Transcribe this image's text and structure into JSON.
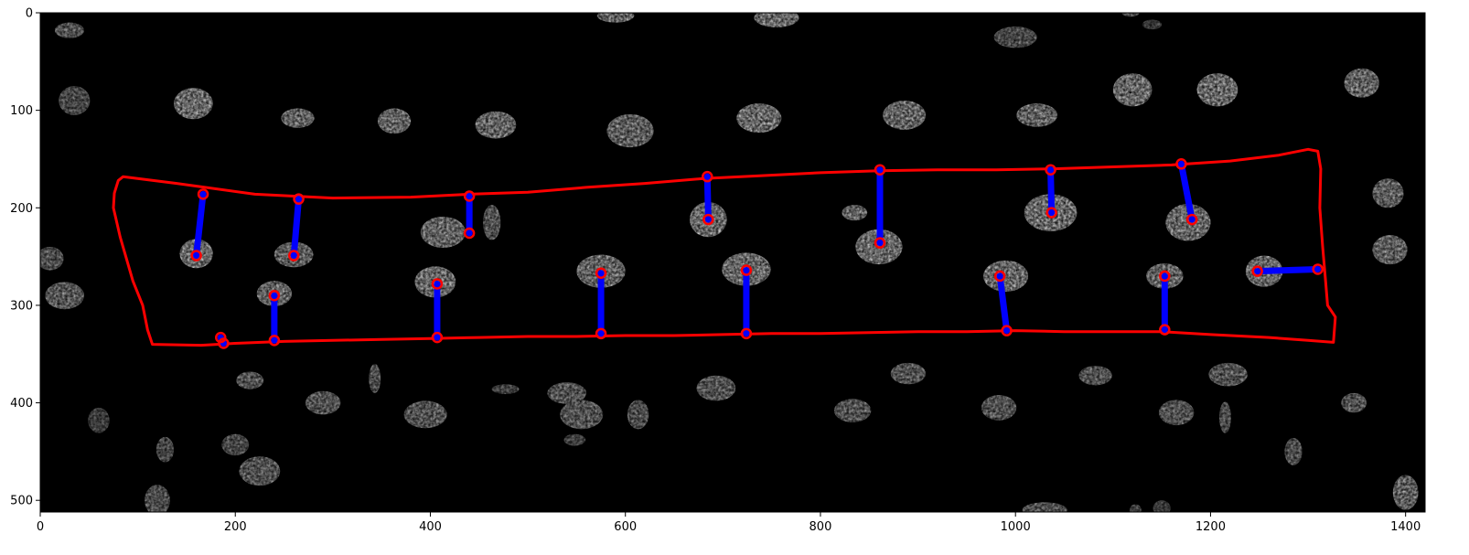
{
  "chart_data": {
    "type": "image",
    "xlim": [
      0,
      1420
    ],
    "ylim": [
      512,
      0
    ],
    "x_ticks": [
      0,
      200,
      400,
      600,
      800,
      1000,
      1200,
      1400
    ],
    "y_ticks": [
      0,
      100,
      200,
      300,
      400,
      500
    ],
    "colors": {
      "background": "#000000",
      "nucleus": "#ffffff",
      "region_outline": "#ff0000",
      "connector": "#0000ff",
      "endpoint_ring": "#ff0000"
    },
    "region_outline": [
      [
        85,
        168
      ],
      [
        140,
        175
      ],
      [
        220,
        186
      ],
      [
        300,
        190
      ],
      [
        380,
        189
      ],
      [
        440,
        186
      ],
      [
        500,
        184
      ],
      [
        560,
        179
      ],
      [
        620,
        175
      ],
      [
        680,
        170
      ],
      [
        740,
        167
      ],
      [
        800,
        164
      ],
      [
        860,
        162
      ],
      [
        920,
        161
      ],
      [
        980,
        161
      ],
      [
        1040,
        160
      ],
      [
        1100,
        158
      ],
      [
        1160,
        156
      ],
      [
        1220,
        152
      ],
      [
        1270,
        146
      ],
      [
        1300,
        140
      ],
      [
        1310,
        142
      ],
      [
        1313,
        160
      ],
      [
        1312,
        200
      ],
      [
        1315,
        240
      ],
      [
        1318,
        275
      ],
      [
        1320,
        300
      ],
      [
        1328,
        312
      ],
      [
        1326,
        338
      ],
      [
        1300,
        336
      ],
      [
        1260,
        333
      ],
      [
        1200,
        330
      ],
      [
        1150,
        327
      ],
      [
        1100,
        327
      ],
      [
        1050,
        327
      ],
      [
        1000,
        326
      ],
      [
        950,
        327
      ],
      [
        900,
        327
      ],
      [
        850,
        328
      ],
      [
        800,
        329
      ],
      [
        750,
        329
      ],
      [
        700,
        330
      ],
      [
        650,
        331
      ],
      [
        600,
        331
      ],
      [
        550,
        332
      ],
      [
        500,
        332
      ],
      [
        450,
        333
      ],
      [
        400,
        334
      ],
      [
        350,
        335
      ],
      [
        300,
        336
      ],
      [
        250,
        337
      ],
      [
        200,
        339
      ],
      [
        165,
        341
      ],
      [
        115,
        340
      ],
      [
        110,
        325
      ],
      [
        105,
        300
      ],
      [
        95,
        275
      ],
      [
        82,
        230
      ],
      [
        75,
        200
      ],
      [
        76,
        185
      ],
      [
        80,
        172
      ],
      [
        85,
        168
      ]
    ],
    "connectors": [
      [
        [
          167,
          186
        ],
        [
          160,
          249
        ]
      ],
      [
        [
          265,
          191
        ],
        [
          260,
          249
        ]
      ],
      [
        [
          440,
          188
        ],
        [
          440,
          226
        ]
      ],
      [
        [
          684,
          168
        ],
        [
          685,
          212
        ]
      ],
      [
        [
          861,
          161
        ],
        [
          861,
          236
        ]
      ],
      [
        [
          1036,
          161
        ],
        [
          1037,
          205
        ]
      ],
      [
        [
          1170,
          155
        ],
        [
          1181,
          212
        ]
      ],
      [
        [
          240,
          290
        ],
        [
          240,
          336
        ]
      ],
      [
        [
          407,
          278
        ],
        [
          407,
          333
        ]
      ],
      [
        [
          575,
          267
        ],
        [
          575,
          329
        ]
      ],
      [
        [
          724,
          264
        ],
        [
          724,
          329
        ]
      ],
      [
        [
          984,
          270
        ],
        [
          991,
          326
        ]
      ],
      [
        [
          1153,
          270
        ],
        [
          1153,
          325
        ]
      ],
      [
        [
          1248,
          265
        ],
        [
          1310,
          263
        ]
      ],
      [
        [
          185,
          333
        ],
        [
          188,
          339
        ]
      ]
    ],
    "nuclei": [
      [
        30,
        18,
        15,
        8,
        0.75
      ],
      [
        35,
        90,
        16,
        15,
        0.65
      ],
      [
        157,
        93,
        20,
        16,
        0.95
      ],
      [
        264,
        108,
        17,
        10,
        0.9
      ],
      [
        363,
        111,
        17,
        13,
        0.9
      ],
      [
        467,
        115,
        21,
        14,
        0.9
      ],
      [
        605,
        121,
        24,
        17,
        0.85
      ],
      [
        737,
        108,
        23,
        15,
        0.95
      ],
      [
        886,
        105,
        22,
        15,
        0.9
      ],
      [
        1022,
        105,
        21,
        12,
        0.9
      ],
      [
        1120,
        79,
        20,
        17,
        0.95
      ],
      [
        1207,
        79,
        21,
        17,
        0.95
      ],
      [
        1355,
        72,
        18,
        15,
        0.9
      ],
      [
        1382,
        185,
        16,
        15,
        0.85
      ],
      [
        1384,
        243,
        18,
        15,
        0.85
      ],
      [
        1000,
        25,
        22,
        11,
        0.65
      ],
      [
        755,
        5,
        23,
        10,
        0.95
      ],
      [
        590,
        3,
        19,
        7,
        0.9
      ],
      [
        1400,
        492,
        13,
        18,
        0.85
      ],
      [
        10,
        252,
        14,
        12,
        0.7
      ],
      [
        25,
        290,
        20,
        14,
        0.8
      ],
      [
        160,
        247,
        17,
        15,
        0.95
      ],
      [
        260,
        248,
        20,
        13,
        0.85
      ],
      [
        413,
        225,
        23,
        16,
        0.9
      ],
      [
        463,
        215,
        9,
        18,
        0.75
      ],
      [
        685,
        212,
        19,
        18,
        0.95
      ],
      [
        835,
        205,
        13,
        8,
        0.9
      ],
      [
        860,
        240,
        24,
        18,
        0.95
      ],
      [
        1036,
        205,
        27,
        19,
        0.95
      ],
      [
        1177,
        215,
        23,
        19,
        0.95
      ],
      [
        1255,
        265,
        19,
        16,
        0.95
      ],
      [
        240,
        288,
        18,
        13,
        0.9
      ],
      [
        405,
        276,
        21,
        16,
        0.95
      ],
      [
        575,
        265,
        25,
        17,
        0.9
      ],
      [
        724,
        263,
        25,
        17,
        0.95
      ],
      [
        990,
        270,
        23,
        16,
        0.95
      ],
      [
        1153,
        270,
        19,
        13,
        0.9
      ],
      [
        215,
        377,
        14,
        9,
        0.75
      ],
      [
        290,
        400,
        18,
        12,
        0.75
      ],
      [
        343,
        375,
        6,
        15,
        0.7
      ],
      [
        395,
        412,
        22,
        14,
        0.75
      ],
      [
        477,
        386,
        14,
        5,
        0.6
      ],
      [
        548,
        438,
        11,
        6,
        0.6
      ],
      [
        540,
        390,
        20,
        11,
        0.75
      ],
      [
        555,
        412,
        22,
        15,
        0.75
      ],
      [
        613,
        412,
        11,
        15,
        0.7
      ],
      [
        693,
        385,
        20,
        13,
        0.75
      ],
      [
        833,
        408,
        19,
        12,
        0.75
      ],
      [
        890,
        370,
        18,
        11,
        0.75
      ],
      [
        983,
        405,
        18,
        13,
        0.75
      ],
      [
        1082,
        372,
        17,
        10,
        0.75
      ],
      [
        1165,
        410,
        18,
        13,
        0.75
      ],
      [
        1215,
        415,
        6,
        16,
        0.7
      ],
      [
        1218,
        371,
        20,
        12,
        0.75
      ],
      [
        1285,
        450,
        9,
        14,
        0.7
      ],
      [
        1347,
        400,
        13,
        10,
        0.75
      ],
      [
        128,
        448,
        9,
        13,
        0.65
      ],
      [
        200,
        443,
        14,
        11,
        0.65
      ],
      [
        225,
        470,
        21,
        15,
        0.75
      ],
      [
        120,
        500,
        13,
        16,
        0.7
      ],
      [
        60,
        418,
        11,
        13,
        0.55
      ],
      [
        1030,
        510,
        23,
        8,
        0.75
      ],
      [
        1123,
        510,
        6,
        6,
        0.6
      ],
      [
        1150,
        508,
        9,
        8,
        0.55
      ],
      [
        1118,
        0,
        9,
        4,
        0.7
      ],
      [
        1140,
        12,
        10,
        5,
        0.5
      ]
    ]
  }
}
